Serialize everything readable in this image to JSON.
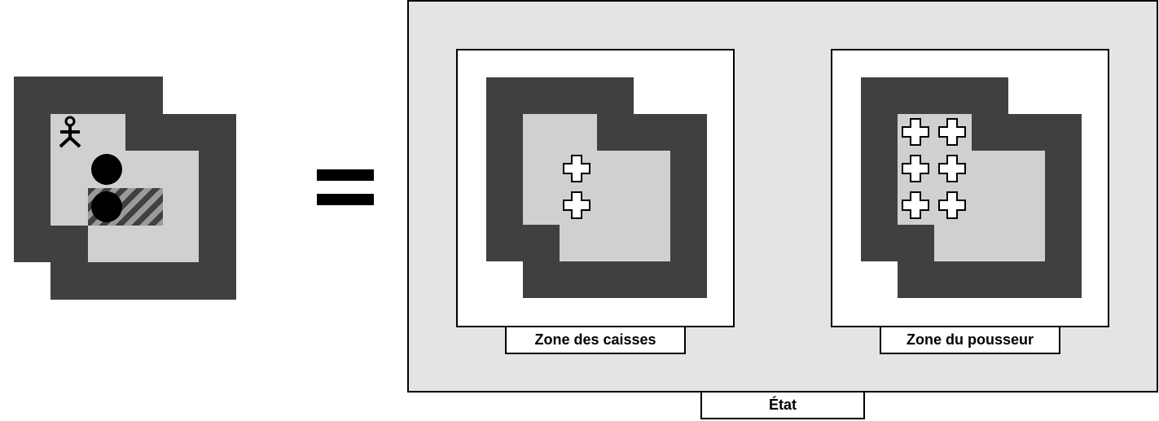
{
  "labels": {
    "crates_zone": "Zone des caisses",
    "pusher_zone": "Zone du pousseur",
    "state": "État"
  },
  "icons": {
    "pusher": "stick-figure-icon",
    "crate": "black-circle",
    "goal": "hatched-target-cell",
    "zone_marker": "white-cross-icon",
    "equals": "equals-sign"
  },
  "colors": {
    "wall": "#404040",
    "floor": "#d0d0d0",
    "state_background": "#e4e4e4",
    "zone_background": "#ffffff",
    "ink": "#000000"
  }
}
